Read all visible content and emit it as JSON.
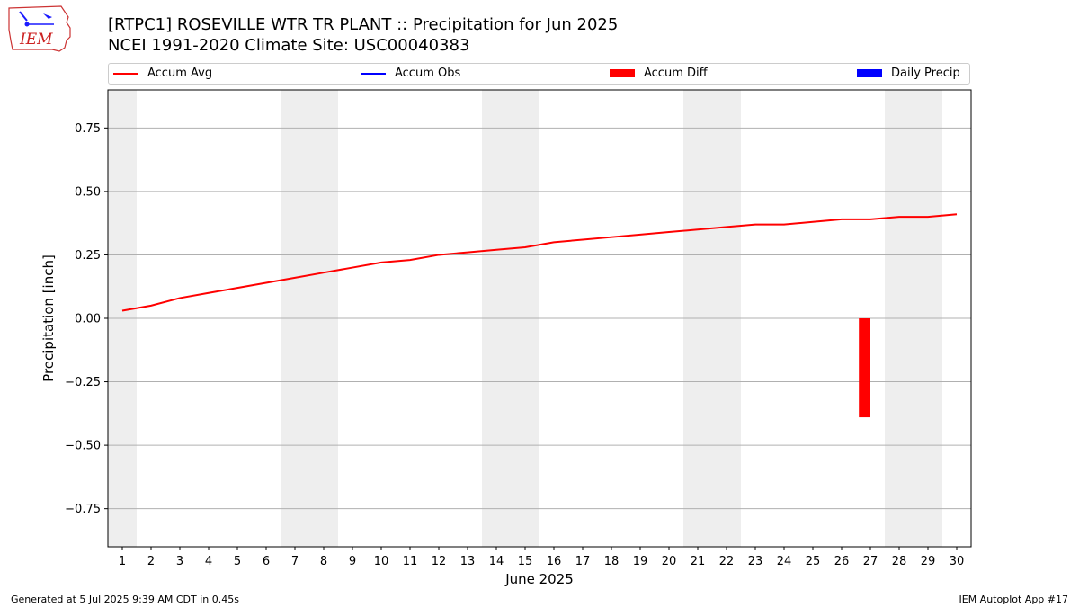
{
  "header": {
    "title_line1": "[RTPC1] ROSEVILLE WTR TR PLANT :: Precipitation for Jun 2025",
    "title_line2": "NCEI 1991-2020 Climate Site: USC00040383"
  },
  "logo": {
    "text": "IEM"
  },
  "legend": [
    {
      "label": "Accum Avg",
      "kind": "line",
      "color": "#ff0000"
    },
    {
      "label": "Accum Obs",
      "kind": "line",
      "color": "#0000ff"
    },
    {
      "label": "Accum Diff",
      "kind": "box",
      "color": "#ff0000"
    },
    {
      "label": "Daily Precip",
      "kind": "box",
      "color": "#0000ff"
    }
  ],
  "footer": {
    "left": "Generated at 5 Jul 2025 9:39 AM CDT in 0.45s",
    "right": "IEM Autoplot App #17"
  },
  "chart_data": {
    "type": "line",
    "xlabel": "June 2025",
    "ylabel": "Precipitation [inch]",
    "x": [
      1,
      2,
      3,
      4,
      5,
      6,
      7,
      8,
      9,
      10,
      11,
      12,
      13,
      14,
      15,
      16,
      17,
      18,
      19,
      20,
      21,
      22,
      23,
      24,
      25,
      26,
      27,
      28,
      29,
      30
    ],
    "xlim": [
      0.5,
      30.5
    ],
    "ylim": [
      -0.9,
      0.9
    ],
    "yticks": [
      -0.75,
      -0.5,
      -0.25,
      0.0,
      0.25,
      0.5,
      0.75
    ],
    "ytick_labels": [
      "−0.75",
      "−0.50",
      "−0.25",
      "0.00",
      "0.25",
      "0.50",
      "0.75"
    ],
    "grid": "y",
    "weekend_shading": [
      [
        0.5,
        1.5
      ],
      [
        6.5,
        8.5
      ],
      [
        13.5,
        15.5
      ],
      [
        20.5,
        22.5
      ],
      [
        27.5,
        29.5
      ]
    ],
    "series": [
      {
        "name": "Accum Avg",
        "type": "line",
        "color": "#ff0000",
        "values": [
          0.03,
          0.05,
          0.08,
          0.1,
          0.12,
          0.14,
          0.16,
          0.18,
          0.2,
          0.22,
          0.23,
          0.25,
          0.26,
          0.27,
          0.28,
          0.3,
          0.31,
          0.32,
          0.33,
          0.34,
          0.35,
          0.36,
          0.37,
          0.37,
          0.38,
          0.39,
          0.39,
          0.4,
          0.4,
          0.41
        ]
      },
      {
        "name": "Accum Diff",
        "type": "bar",
        "color": "#ff0000",
        "points": [
          {
            "x": 26.8,
            "value": -0.39
          }
        ]
      }
    ]
  }
}
